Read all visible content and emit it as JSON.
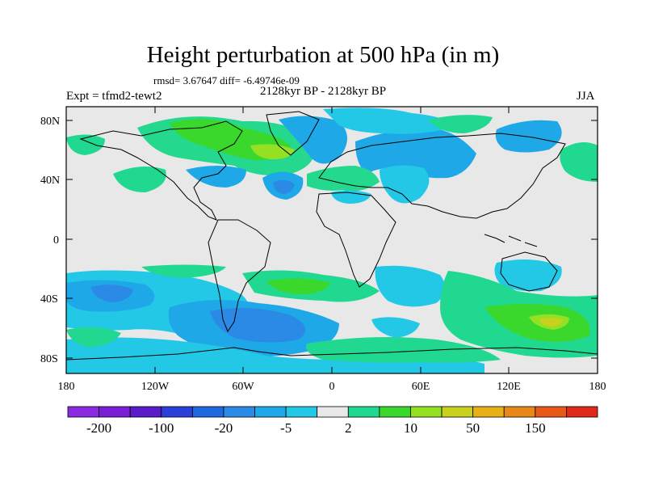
{
  "title": "Height perturbation at 500 hPa (in m)",
  "stats": "rmsd= 3.67647 diff= -6.49746e-09",
  "left_label": "Expt = tfmd2-tewt2",
  "center_label": "2128kyr BP - 2128kyr BP",
  "right_label": "JJA",
  "map": {
    "projection": "cylindrical-equidistant",
    "lon_range": [
      -180,
      180
    ],
    "lat_range": [
      -90,
      90
    ],
    "variable": "500 hPa geopotential height perturbation",
    "units": "m"
  },
  "axes": {
    "x_ticks": [
      "180",
      "120W",
      "60W",
      "0",
      "60E",
      "120E",
      "180"
    ],
    "y_ticks": [
      "80N",
      "40N",
      "0",
      "40S",
      "80S"
    ]
  },
  "colorbar": {
    "colors": [
      "#8a2be2",
      "#7a1fd6",
      "#5a1cc8",
      "#2c3fd8",
      "#1e68e0",
      "#2a8ae6",
      "#1fa8e8",
      "#22c8e6",
      "#e8e8e8",
      "#20d890",
      "#3ad82c",
      "#96e024",
      "#c8d21e",
      "#e8b018",
      "#e88818",
      "#e85818",
      "#e02818"
    ],
    "labels": [
      "-200",
      "-100",
      "-20",
      "-5",
      "2",
      "10",
      "50",
      "150"
    ]
  }
}
